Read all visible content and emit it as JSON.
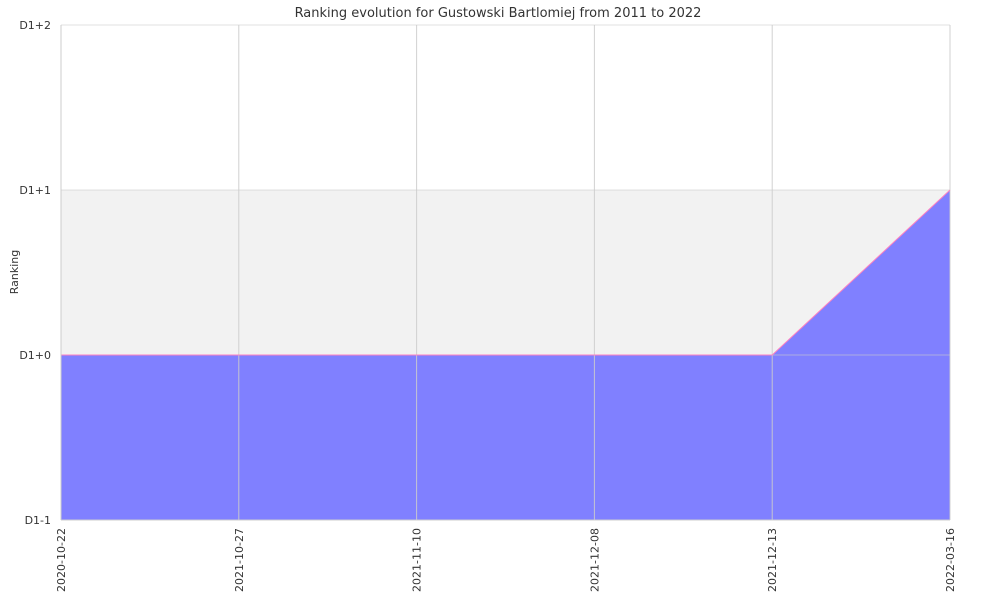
{
  "chart_data": {
    "type": "area",
    "title": "Ranking evolution for Gustowski Bartlomiej from 2011 to 2022",
    "xlabel": "",
    "ylabel": "Ranking",
    "x": [
      "2020-10-22",
      "2021-10-27",
      "2021-11-10",
      "2021-12-08",
      "2021-12-13",
      "2022-03-16"
    ],
    "y_tick_labels": [
      "D1-1",
      "D1+0",
      "D1+1",
      "D1+2"
    ],
    "ylim": [
      -1,
      2
    ],
    "series": [
      {
        "values": [
          0,
          0,
          0,
          0,
          0,
          1
        ],
        "color": "#8080ff",
        "line_color": "#ff80c0"
      }
    ],
    "band": {
      "from": 0,
      "to": 1,
      "color": "#f2f2f2"
    },
    "grid": true,
    "grid_color": "#cccccc",
    "legend": "none"
  }
}
